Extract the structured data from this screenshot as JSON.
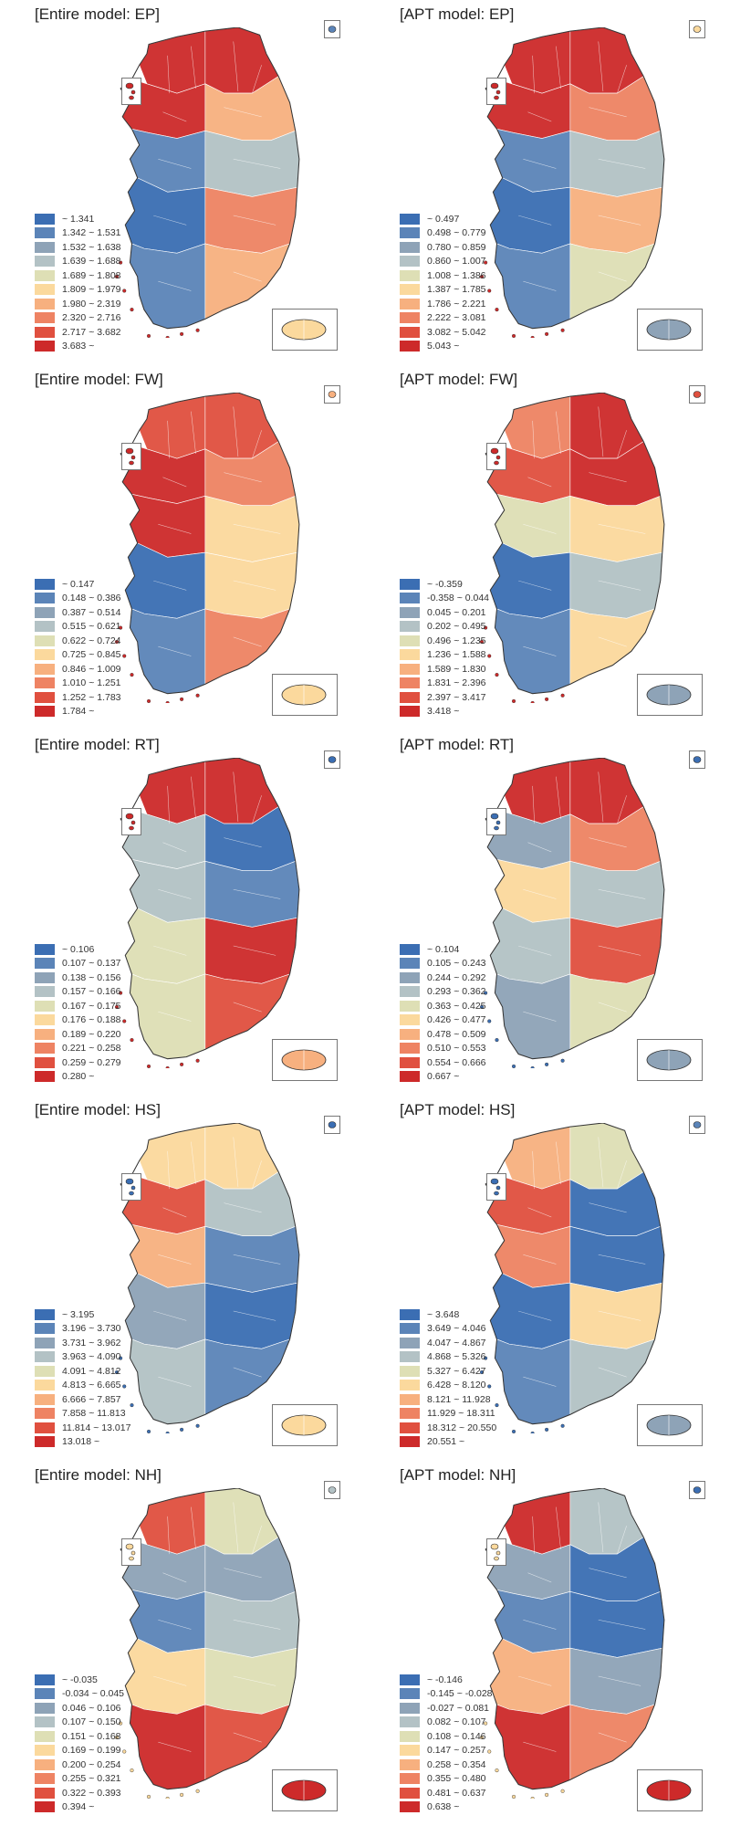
{
  "palette": [
    "#3b6eb3",
    "#5b84b8",
    "#8ea3b7",
    "#b3c2c5",
    "#dedfb5",
    "#fbd99d",
    "#f7b07f",
    "#ee8363",
    "#e0503f",
    "#cd2a2a"
  ],
  "panels": [
    {
      "title": "[Entire model: EP]",
      "legend": [
        "~ 1.341",
        "1.342 ~ 1.531",
        "1.532 ~ 1.638",
        "1.639 ~ 1.688",
        "1.689 ~ 1.808",
        "1.809 ~ 1.979",
        "1.980 ~ 2.319",
        "2.320 ~ 2.716",
        "2.717 ~ 3.682",
        "3.683 ~"
      ],
      "jeju": 5,
      "ulleung": 1,
      "west": 9
    },
    {
      "title": "[APT model: EP]",
      "legend": [
        "~ 0.497",
        "0.498 ~ 0.779",
        "0.780 ~ 0.859",
        "0.860 ~ 1.007",
        "1.008 ~ 1.386",
        "1.387 ~ 1.785",
        "1.786 ~ 2.221",
        "2.222 ~ 3.081",
        "3.082 ~ 5.042",
        "5.043 ~"
      ],
      "jeju": 2,
      "ulleung": 5,
      "west": 9
    },
    {
      "title": "[Entire model: FW]",
      "legend": [
        "~ 0.147",
        "0.148 ~ 0.386",
        "0.387 ~ 0.514",
        "0.515 ~ 0.621",
        "0.622 ~ 0.724",
        "0.725 ~ 0.845",
        "0.846 ~ 1.009",
        "1.010 ~ 1.251",
        "1.252 ~ 1.783",
        "1.784 ~"
      ],
      "jeju": 5,
      "ulleung": 6,
      "west": 9
    },
    {
      "title": "[APT model: FW]",
      "legend": [
        "~ -0.359",
        "-0.358 ~ 0.044",
        "0.045 ~ 0.201",
        "0.202 ~ 0.495",
        "0.496 ~ 1.235",
        "1.236 ~ 1.588",
        "1.589 ~ 1.830",
        "1.831 ~ 2.396",
        "2.397 ~ 3.417",
        "3.418 ~"
      ],
      "jeju": 2,
      "ulleung": 8,
      "west": 9
    },
    {
      "title": "[Entire model: RT]",
      "legend": [
        "~ 0.106",
        "0.107 ~ 0.137",
        "0.138 ~ 0.156",
        "0.157 ~ 0.166",
        "0.167 ~ 0.175",
        "0.176 ~ 0.188",
        "0.189 ~ 0.220",
        "0.221 ~ 0.258",
        "0.259 ~ 0.279",
        "0.280 ~"
      ],
      "jeju": 6,
      "ulleung": 0,
      "west": 9
    },
    {
      "title": "[APT model: RT]",
      "legend": [
        "~ 0.104",
        "0.105 ~ 0.243",
        "0.244 ~ 0.292",
        "0.293 ~ 0.362",
        "0.363 ~ 0.425",
        "0.426 ~ 0.477",
        "0.478 ~ 0.509",
        "0.510 ~ 0.553",
        "0.554 ~ 0.666",
        "0.667 ~"
      ],
      "jeju": 2,
      "ulleung": 0,
      "west": 0
    },
    {
      "title": "[Entire model: HS]",
      "legend": [
        "~ 3.195",
        "3.196 ~ 3.730",
        "3.731 ~ 3.962",
        "3.963 ~ 4.090",
        "4.091 ~ 4.812",
        "4.813 ~ 6.665",
        "6.666 ~ 7.857",
        "7.858 ~ 11.813",
        "11.814 ~ 13.017",
        "13.018 ~"
      ],
      "jeju": 5,
      "ulleung": 0,
      "west": 0
    },
    {
      "title": "[APT model: HS]",
      "legend": [
        "~ 3.648",
        "3.649 ~ 4.046",
        "4.047 ~ 4.867",
        "4.868 ~ 5.326",
        "5.327 ~ 6.427",
        "6.428 ~ 8.120",
        "8.121 ~ 11.928",
        "11.929 ~ 18.311",
        "18.312 ~ 20.550",
        "20.551 ~"
      ],
      "jeju": 2,
      "ulleung": 1,
      "west": 0
    },
    {
      "title": "[Entire model: NH]",
      "legend": [
        "~ -0.035",
        "-0.034 ~ 0.045",
        "0.046 ~ 0.106",
        "0.107 ~ 0.150",
        "0.151 ~ 0.168",
        "0.169 ~ 0.199",
        "0.200 ~ 0.254",
        "0.255 ~ 0.321",
        "0.322 ~ 0.393",
        "0.394 ~"
      ],
      "jeju": 9,
      "ulleung": 3,
      "west": 5
    },
    {
      "title": "[APT model: NH]",
      "legend": [
        "~ -0.146",
        "-0.145 ~ -0.028",
        "-0.027 ~ 0.081",
        "0.082 ~ 0.107",
        "0.108 ~ 0.146",
        "0.147 ~ 0.257",
        "0.258 ~ 0.354",
        "0.355 ~ 0.480",
        "0.481 ~ 0.637",
        "0.638 ~"
      ],
      "jeju": 9,
      "ulleung": 0,
      "west": 5
    }
  ]
}
